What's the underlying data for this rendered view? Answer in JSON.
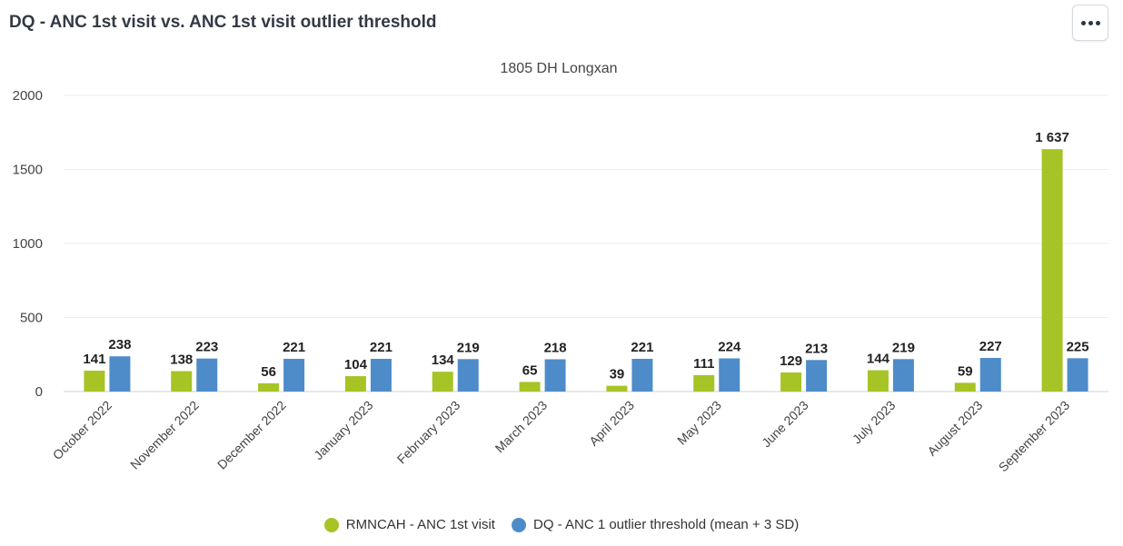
{
  "header": {
    "title": "DQ - ANC 1st visit vs. ANC 1st visit outlier threshold",
    "menu_icon": "more-horizontal-icon"
  },
  "chart_data": {
    "type": "bar",
    "subtitle": "1805 DH Longxan",
    "categories": [
      "October 2022",
      "November 2022",
      "December 2022",
      "January 2023",
      "February 2023",
      "March 2023",
      "April 2023",
      "May 2023",
      "June 2023",
      "July 2023",
      "August 2023",
      "September 2023"
    ],
    "series": [
      {
        "name": "RMNCAH - ANC 1st visit",
        "color": "#a6c425",
        "values": [
          141,
          138,
          56,
          104,
          134,
          65,
          39,
          111,
          129,
          144,
          59,
          1637
        ],
        "labels": [
          "141",
          "138",
          "56",
          "104",
          "134",
          "65",
          "39",
          "111",
          "129",
          "144",
          "59",
          "1 637"
        ]
      },
      {
        "name": "DQ - ANC 1 outlier threshold (mean + 3 SD)",
        "color": "#4e8cc9",
        "values": [
          238,
          223,
          221,
          221,
          219,
          218,
          221,
          224,
          213,
          219,
          227,
          225
        ],
        "labels": [
          "238",
          "223",
          "221",
          "221",
          "219",
          "218",
          "221",
          "224",
          "213",
          "219",
          "227",
          "225"
        ]
      }
    ],
    "yticks": [
      "0",
      "500",
      "1000",
      "1500",
      "2000"
    ],
    "ylim": [
      0,
      2000
    ],
    "grid": true,
    "legend_position": "bottom-center"
  }
}
